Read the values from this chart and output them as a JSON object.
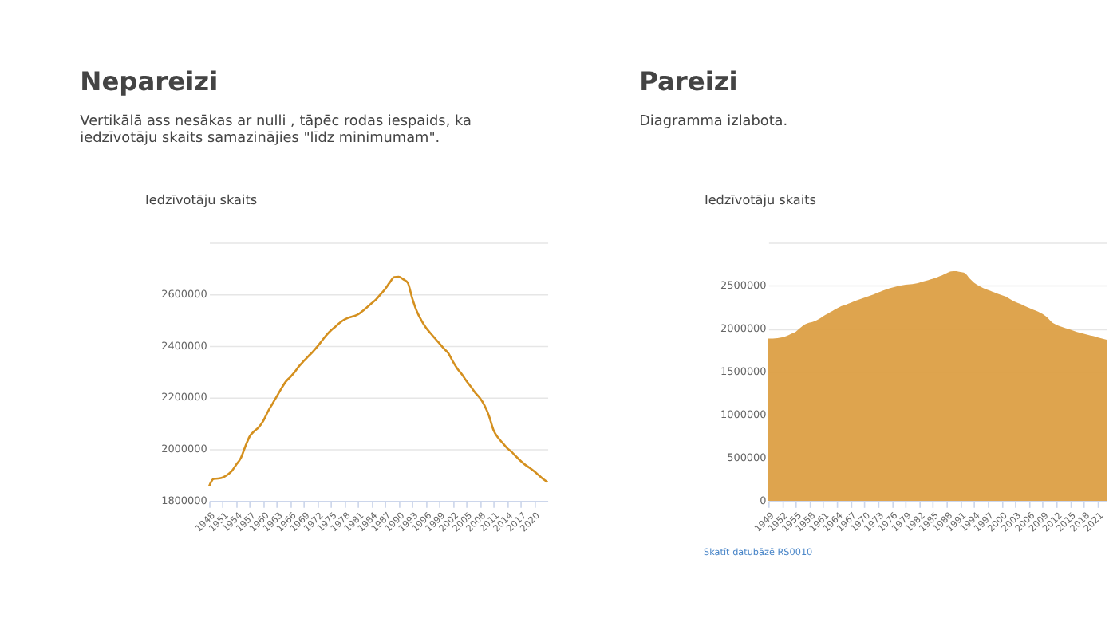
{
  "chart_data": [
    {
      "type": "line",
      "title": "Nepareizi",
      "subtitle": "Vertikālā ass nesākas ar nulli , tāpēc rodas iespaids, ka iedzīvotāju skaits samazinājies \"līdz minimumam\".",
      "ylabel": "Iedzīvotāju skaits",
      "x": [
        1948,
        1949,
        1950,
        1951,
        1952,
        1953,
        1954,
        1955,
        1956,
        1957,
        1958,
        1959,
        1960,
        1961,
        1962,
        1963,
        1964,
        1965,
        1966,
        1967,
        1968,
        1969,
        1970,
        1971,
        1972,
        1973,
        1974,
        1975,
        1976,
        1977,
        1978,
        1979,
        1980,
        1981,
        1982,
        1983,
        1984,
        1985,
        1986,
        1987,
        1988,
        1989,
        1990,
        1991,
        1992,
        1993,
        1994,
        1995,
        1996,
        1997,
        1998,
        1999,
        2000,
        2001,
        2002,
        2003,
        2004,
        2005,
        2006,
        2007,
        2008,
        2009,
        2010,
        2011,
        2012,
        2013,
        2014,
        2015,
        2016,
        2017,
        2018,
        2019,
        2020,
        2021,
        2022,
        2023
      ],
      "series": [
        {
          "color": "#d4901f",
          "values": [
            1857000,
            1885000,
            1886000,
            1890000,
            1900000,
            1915000,
            1940000,
            1965000,
            2010000,
            2050000,
            2070000,
            2085000,
            2110000,
            2145000,
            2175000,
            2205000,
            2235000,
            2262000,
            2280000,
            2300000,
            2323000,
            2342000,
            2360000,
            2378000,
            2398000,
            2420000,
            2442000,
            2460000,
            2475000,
            2490000,
            2502000,
            2510000,
            2515000,
            2522000,
            2535000,
            2550000,
            2565000,
            2580000,
            2600000,
            2620000,
            2645000,
            2666000,
            2668000,
            2658000,
            2645000,
            2585000,
            2535000,
            2500000,
            2472000,
            2450000,
            2430000,
            2410000,
            2390000,
            2372000,
            2340000,
            2312000,
            2290000,
            2265000,
            2242000,
            2218000,
            2198000,
            2170000,
            2130000,
            2075000,
            2045000,
            2025000,
            2005000,
            1990000,
            1972000,
            1955000,
            1940000,
            1928000,
            1915000,
            1900000,
            1885000,
            1872000
          ]
        }
      ],
      "xlim": [
        1948,
        2023
      ],
      "xticks": [
        1948,
        1951,
        1954,
        1957,
        1960,
        1963,
        1966,
        1969,
        1972,
        1975,
        1978,
        1981,
        1984,
        1987,
        1990,
        1993,
        1996,
        1999,
        2002,
        2005,
        2008,
        2011,
        2014,
        2017,
        2020
      ],
      "ylim": [
        1800000,
        2800000
      ],
      "yticks": [
        1800000,
        2000000,
        2200000,
        2400000,
        2600000,
        {
          "value": 2800000,
          "label": null
        }
      ],
      "grid": "y",
      "line_style": "solid",
      "marker": "none"
    },
    {
      "type": "area",
      "title": "Pareizi",
      "subtitle": "Diagramma izlabota.",
      "ylabel": "Iedzīvotāju skaits",
      "x": [
        1949,
        1950,
        1951,
        1952,
        1953,
        1954,
        1955,
        1956,
        1957,
        1958,
        1959,
        1960,
        1961,
        1962,
        1963,
        1964,
        1965,
        1966,
        1967,
        1968,
        1969,
        1970,
        1971,
        1972,
        1973,
        1974,
        1975,
        1976,
        1977,
        1978,
        1979,
        1980,
        1981,
        1982,
        1983,
        1984,
        1985,
        1986,
        1987,
        1988,
        1989,
        1990,
        1991,
        1992,
        1993,
        1994,
        1995,
        1996,
        1997,
        1998,
        1999,
        2000,
        2001,
        2002,
        2003,
        2004,
        2005,
        2006,
        2007,
        2008,
        2009,
        2010,
        2011,
        2012,
        2013,
        2014,
        2015,
        2016,
        2017,
        2018,
        2019,
        2020,
        2021,
        2022,
        2023
      ],
      "series": [
        {
          "color": "#dc9f45",
          "values": [
            1885000,
            1886000,
            1890000,
            1900000,
            1915000,
            1940000,
            1965000,
            2010000,
            2050000,
            2070000,
            2085000,
            2110000,
            2145000,
            2175000,
            2205000,
            2235000,
            2262000,
            2280000,
            2300000,
            2323000,
            2342000,
            2360000,
            2378000,
            2398000,
            2420000,
            2442000,
            2460000,
            2475000,
            2490000,
            2502000,
            2510000,
            2515000,
            2522000,
            2535000,
            2550000,
            2565000,
            2580000,
            2600000,
            2620000,
            2645000,
            2666000,
            2668000,
            2658000,
            2645000,
            2585000,
            2535000,
            2500000,
            2472000,
            2450000,
            2430000,
            2410000,
            2390000,
            2372000,
            2340000,
            2312000,
            2290000,
            2265000,
            2242000,
            2218000,
            2198000,
            2170000,
            2130000,
            2075000,
            2045000,
            2025000,
            2005000,
            1990000,
            1972000,
            1955000,
            1940000,
            1928000,
            1915000,
            1900000,
            1885000,
            1872000
          ]
        }
      ],
      "xlim": [
        1949,
        2023
      ],
      "xticks": [
        1949,
        1952,
        1955,
        1958,
        1961,
        1964,
        1967,
        1970,
        1973,
        1976,
        1979,
        1982,
        1985,
        1988,
        1991,
        1994,
        1997,
        2000,
        2003,
        2006,
        2009,
        2012,
        2015,
        2018,
        2021
      ],
      "ylim": [
        0,
        3000000
      ],
      "yticks": [
        0,
        500000,
        1000000,
        1500000,
        2000000,
        2500000,
        {
          "value": 3000000,
          "label": null
        }
      ],
      "grid": "y",
      "annotations": [
        "Skatīt datubāzē RS0010"
      ]
    }
  ]
}
